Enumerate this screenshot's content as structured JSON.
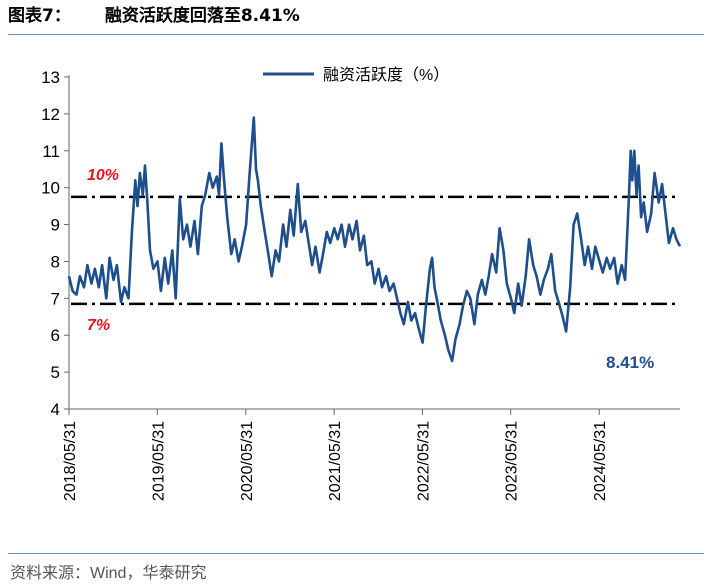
{
  "header": {
    "figure_no": "图表7：",
    "title": "融资活跃度回落至8.41%"
  },
  "footer": {
    "source": "资料来源：Wind，华泰研究"
  },
  "colors": {
    "series": "#1f4e8c",
    "reference": "#000000",
    "ref_label": "#e8141b",
    "value_label": "#1f4e8c"
  },
  "chart_data": {
    "type": "line",
    "title": "融资活跃度回落至8.41%",
    "xlabel": "",
    "ylabel": "",
    "ylim": [
      4,
      13
    ],
    "yticks": [
      4,
      5,
      6,
      7,
      8,
      9,
      10,
      11,
      12,
      13
    ],
    "xlim": [
      "2018-05-31",
      "2025-04-30"
    ],
    "xticks": [
      "2018/05/31",
      "2019/05/31",
      "2020/05/31",
      "2021/05/31",
      "2022/05/31",
      "2023/05/31",
      "2024/05/31"
    ],
    "legend": {
      "label": "融资活跃度（%）",
      "position": "top-center"
    },
    "series": [
      {
        "name": "融资活跃度（%）",
        "points": [
          [
            "2018-05-31",
            7.6
          ],
          [
            "2018-06-15",
            7.2
          ],
          [
            "2018-07-01",
            7.1
          ],
          [
            "2018-07-15",
            7.6
          ],
          [
            "2018-08-01",
            7.3
          ],
          [
            "2018-08-15",
            7.9
          ],
          [
            "2018-09-01",
            7.4
          ],
          [
            "2018-09-15",
            7.8
          ],
          [
            "2018-10-01",
            7.3
          ],
          [
            "2018-10-15",
            7.9
          ],
          [
            "2018-11-01",
            7.0
          ],
          [
            "2018-11-15",
            8.1
          ],
          [
            "2018-12-01",
            7.5
          ],
          [
            "2018-12-15",
            7.9
          ],
          [
            "2019-01-01",
            6.9
          ],
          [
            "2019-01-15",
            7.3
          ],
          [
            "2019-02-01",
            7.0
          ],
          [
            "2019-02-15",
            8.8
          ],
          [
            "2019-03-01",
            10.2
          ],
          [
            "2019-03-10",
            9.5
          ],
          [
            "2019-03-20",
            10.4
          ],
          [
            "2019-04-01",
            9.8
          ],
          [
            "2019-04-10",
            10.6
          ],
          [
            "2019-04-20",
            9.6
          ],
          [
            "2019-05-01",
            8.3
          ],
          [
            "2019-05-15",
            7.8
          ],
          [
            "2019-06-01",
            8.0
          ],
          [
            "2019-06-15",
            7.2
          ],
          [
            "2019-07-01",
            8.1
          ],
          [
            "2019-07-15",
            7.4
          ],
          [
            "2019-08-01",
            8.3
          ],
          [
            "2019-08-15",
            7.0
          ],
          [
            "2019-09-01",
            9.7
          ],
          [
            "2019-09-15",
            8.6
          ],
          [
            "2019-10-01",
            9.0
          ],
          [
            "2019-10-15",
            8.4
          ],
          [
            "2019-11-01",
            9.1
          ],
          [
            "2019-11-15",
            8.2
          ],
          [
            "2019-12-01",
            9.5
          ],
          [
            "2019-12-15",
            9.8
          ],
          [
            "2020-01-01",
            10.4
          ],
          [
            "2020-01-15",
            10.0
          ],
          [
            "2020-02-01",
            10.3
          ],
          [
            "2020-02-10",
            9.8
          ],
          [
            "2020-02-20",
            11.2
          ],
          [
            "2020-03-01",
            10.3
          ],
          [
            "2020-03-15",
            9.2
          ],
          [
            "2020-04-01",
            8.2
          ],
          [
            "2020-04-15",
            8.6
          ],
          [
            "2020-05-01",
            8.0
          ],
          [
            "2020-05-15",
            8.4
          ],
          [
            "2020-06-01",
            9.0
          ],
          [
            "2020-06-15",
            10.3
          ],
          [
            "2020-06-25",
            11.2
          ],
          [
            "2020-07-03",
            11.9
          ],
          [
            "2020-07-12",
            10.5
          ],
          [
            "2020-07-20",
            10.2
          ],
          [
            "2020-08-01",
            9.5
          ],
          [
            "2020-08-15",
            8.9
          ],
          [
            "2020-09-01",
            8.2
          ],
          [
            "2020-09-15",
            7.6
          ],
          [
            "2020-10-01",
            8.3
          ],
          [
            "2020-10-15",
            8.0
          ],
          [
            "2020-11-01",
            9.0
          ],
          [
            "2020-11-15",
            8.4
          ],
          [
            "2020-12-01",
            9.4
          ],
          [
            "2020-12-15",
            8.7
          ],
          [
            "2021-01-01",
            10.1
          ],
          [
            "2021-01-15",
            8.8
          ],
          [
            "2021-02-01",
            9.1
          ],
          [
            "2021-02-15",
            8.5
          ],
          [
            "2021-03-01",
            7.9
          ],
          [
            "2021-03-15",
            8.4
          ],
          [
            "2021-04-01",
            7.7
          ],
          [
            "2021-04-15",
            8.2
          ],
          [
            "2021-05-01",
            8.8
          ],
          [
            "2021-05-15",
            8.5
          ],
          [
            "2021-06-01",
            8.9
          ],
          [
            "2021-06-15",
            8.6
          ],
          [
            "2021-07-01",
            9.0
          ],
          [
            "2021-07-15",
            8.4
          ],
          [
            "2021-08-01",
            9.0
          ],
          [
            "2021-08-15",
            8.6
          ],
          [
            "2021-09-01",
            9.1
          ],
          [
            "2021-09-15",
            8.3
          ],
          [
            "2021-10-01",
            8.7
          ],
          [
            "2021-10-15",
            7.9
          ],
          [
            "2021-11-01",
            8.0
          ],
          [
            "2021-11-15",
            7.4
          ],
          [
            "2021-12-01",
            7.8
          ],
          [
            "2021-12-15",
            7.3
          ],
          [
            "2022-01-01",
            7.6
          ],
          [
            "2022-01-15",
            7.2
          ],
          [
            "2022-02-01",
            7.4
          ],
          [
            "2022-02-15",
            7.0
          ],
          [
            "2022-03-01",
            6.6
          ],
          [
            "2022-03-15",
            6.3
          ],
          [
            "2022-04-01",
            6.9
          ],
          [
            "2022-04-15",
            6.4
          ],
          [
            "2022-05-01",
            6.6
          ],
          [
            "2022-05-15",
            6.2
          ],
          [
            "2022-06-01",
            5.8
          ],
          [
            "2022-06-15",
            6.8
          ],
          [
            "2022-07-01",
            7.8
          ],
          [
            "2022-07-10",
            8.1
          ],
          [
            "2022-07-20",
            7.3
          ],
          [
            "2022-08-01",
            6.9
          ],
          [
            "2022-08-15",
            6.4
          ],
          [
            "2022-09-01",
            6.0
          ],
          [
            "2022-09-15",
            5.6
          ],
          [
            "2022-10-01",
            5.3
          ],
          [
            "2022-10-15",
            5.9
          ],
          [
            "2022-11-01",
            6.3
          ],
          [
            "2022-11-15",
            6.8
          ],
          [
            "2022-12-01",
            7.2
          ],
          [
            "2022-12-15",
            7.0
          ],
          [
            "2023-01-01",
            6.3
          ],
          [
            "2023-01-15",
            7.1
          ],
          [
            "2023-02-01",
            7.5
          ],
          [
            "2023-02-15",
            7.1
          ],
          [
            "2023-03-01",
            7.6
          ],
          [
            "2023-03-15",
            8.2
          ],
          [
            "2023-04-01",
            7.7
          ],
          [
            "2023-04-15",
            8.9
          ],
          [
            "2023-05-01",
            8.3
          ],
          [
            "2023-05-15",
            7.4
          ],
          [
            "2023-06-01",
            7.0
          ],
          [
            "2023-06-15",
            6.6
          ],
          [
            "2023-07-01",
            7.4
          ],
          [
            "2023-07-15",
            6.8
          ],
          [
            "2023-08-01",
            7.6
          ],
          [
            "2023-08-15",
            8.6
          ],
          [
            "2023-09-01",
            7.9
          ],
          [
            "2023-09-15",
            7.6
          ],
          [
            "2023-10-01",
            7.1
          ],
          [
            "2023-10-15",
            7.5
          ],
          [
            "2023-11-01",
            7.8
          ],
          [
            "2023-11-15",
            8.2
          ],
          [
            "2023-12-01",
            7.2
          ],
          [
            "2023-12-15",
            6.9
          ],
          [
            "2024-01-01",
            6.5
          ],
          [
            "2024-01-15",
            6.1
          ],
          [
            "2024-02-01",
            7.3
          ],
          [
            "2024-02-15",
            9.0
          ],
          [
            "2024-03-01",
            9.3
          ],
          [
            "2024-03-15",
            8.7
          ],
          [
            "2024-04-01",
            7.9
          ],
          [
            "2024-04-15",
            8.4
          ],
          [
            "2024-05-01",
            7.8
          ],
          [
            "2024-05-15",
            8.4
          ],
          [
            "2024-06-01",
            8.0
          ],
          [
            "2024-06-15",
            7.7
          ],
          [
            "2024-07-01",
            8.1
          ],
          [
            "2024-07-15",
            7.8
          ],
          [
            "2024-08-01",
            8.1
          ],
          [
            "2024-08-15",
            7.4
          ],
          [
            "2024-09-01",
            7.9
          ],
          [
            "2024-09-15",
            7.5
          ],
          [
            "2024-10-01",
            9.8
          ],
          [
            "2024-10-08",
            11.0
          ],
          [
            "2024-10-15",
            10.2
          ],
          [
            "2024-10-23",
            11.0
          ],
          [
            "2024-11-01",
            9.8
          ],
          [
            "2024-11-10",
            10.6
          ],
          [
            "2024-11-20",
            9.2
          ],
          [
            "2024-12-01",
            9.6
          ],
          [
            "2024-12-15",
            8.8
          ],
          [
            "2025-01-01",
            9.3
          ],
          [
            "2025-01-15",
            10.4
          ],
          [
            "2025-02-01",
            9.6
          ],
          [
            "2025-02-15",
            10.1
          ],
          [
            "2025-03-01",
            9.3
          ],
          [
            "2025-03-15",
            8.5
          ],
          [
            "2025-04-01",
            8.9
          ],
          [
            "2025-04-15",
            8.6
          ],
          [
            "2025-04-30",
            8.41
          ]
        ]
      }
    ],
    "reference_lines": [
      {
        "value": 9.75,
        "label": "10%"
      },
      {
        "value": 6.85,
        "label": "7%"
      }
    ],
    "annotations": [
      {
        "text": "8.41%",
        "anchor": "last-point"
      }
    ]
  }
}
